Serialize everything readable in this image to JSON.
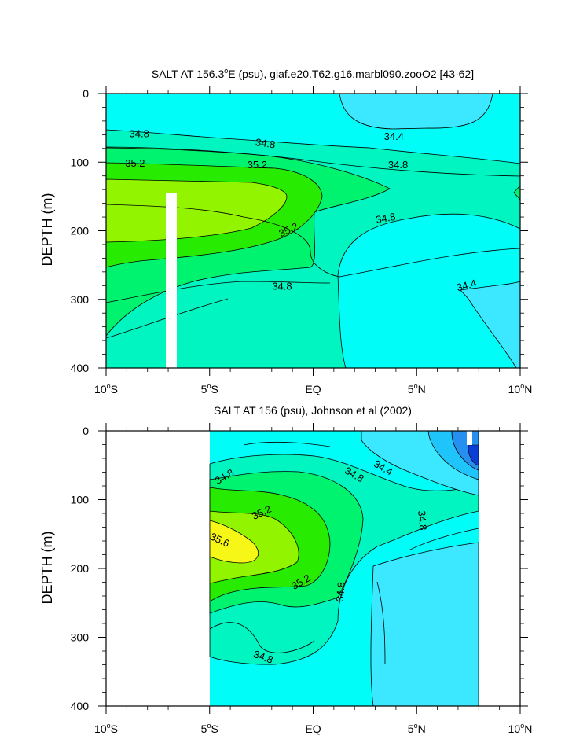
{
  "colors": {
    "white": "#ffffff",
    "lev_34_0": "#2590f0",
    "lev_34_2": "#1ec4fa",
    "lev_34_4": "#3be8ff",
    "lev_34_6": "#00fdf8",
    "lev_34_8": "#00f5c0",
    "lev_35_0": "#00f36f",
    "lev_35_2": "#27eb00",
    "lev_35_4": "#93f400",
    "lev_35_6": "#f6f716",
    "lev_dark": "#0c3dd4",
    "line": "#000000"
  },
  "chart_data": [
    {
      "type": "heatmap",
      "title_prefix": "SALT AT 156.3",
      "title_suffix": "E (psu), giaf.e20.T62.g16.marbl090.zooO2 [43-62]",
      "ylabel": "DEPTH (m)",
      "ylim": [
        0,
        400
      ],
      "xlim": [
        -10,
        10
      ],
      "yticks": [
        {
          "value": 0,
          "label": "0"
        },
        {
          "value": 100,
          "label": "100"
        },
        {
          "value": 200,
          "label": "200"
        },
        {
          "value": 300,
          "label": "300"
        },
        {
          "value": 400,
          "label": "400"
        }
      ],
      "xticks": [
        {
          "value": -10,
          "label": "10",
          "deg": true,
          "hem": "S"
        },
        {
          "value": -5,
          "label": "5",
          "deg": true,
          "hem": "S"
        },
        {
          "value": 0,
          "label": "EQ",
          "deg": false,
          "hem": ""
        },
        {
          "value": 5,
          "label": "5",
          "deg": true,
          "hem": "N"
        },
        {
          "value": 10,
          "label": "10",
          "deg": true,
          "hem": "N"
        }
      ],
      "contour_labels": [
        {
          "text": "34.8",
          "x": -8.4,
          "depth": 58,
          "angle": 0
        },
        {
          "text": "34.8",
          "x": -2.3,
          "depth": 72,
          "angle": 8
        },
        {
          "text": "34.4",
          "x": 3.9,
          "depth": 62,
          "angle": 0
        },
        {
          "text": "35.2",
          "x": -8.6,
          "depth": 101,
          "angle": 0
        },
        {
          "text": "35.2",
          "x": -2.7,
          "depth": 103,
          "angle": 0
        },
        {
          "text": "34.8",
          "x": 4.1,
          "depth": 103,
          "angle": 0
        },
        {
          "text": "34.8",
          "x": 3.5,
          "depth": 181,
          "angle": -10
        },
        {
          "text": "35.2",
          "x": -1.2,
          "depth": 198,
          "angle": -25
        },
        {
          "text": "34.8",
          "x": -1.5,
          "depth": 280,
          "angle": 0
        },
        {
          "text": "34.4",
          "x": 7.4,
          "depth": 279,
          "angle": -15
        }
      ]
    },
    {
      "type": "heatmap",
      "title": "SALT AT 156 (psu), Johnson et al (2002)",
      "ylabel": "DEPTH (m)",
      "ylim": [
        0,
        400
      ],
      "xlim": [
        -10,
        10
      ],
      "data_xrange": [
        -5,
        8
      ],
      "yticks": [
        {
          "value": 0,
          "label": "0"
        },
        {
          "value": 100,
          "label": "100"
        },
        {
          "value": 200,
          "label": "200"
        },
        {
          "value": 300,
          "label": "300"
        },
        {
          "value": 400,
          "label": "400"
        }
      ],
      "xticks": [
        {
          "value": -10,
          "label": "10",
          "deg": true,
          "hem": "S"
        },
        {
          "value": -5,
          "label": "5",
          "deg": true,
          "hem": "S"
        },
        {
          "value": 0,
          "label": "EQ",
          "deg": false,
          "hem": ""
        },
        {
          "value": 5,
          "label": "5",
          "deg": true,
          "hem": "N"
        },
        {
          "value": 10,
          "label": "10",
          "deg": true,
          "hem": "N"
        }
      ],
      "contour_labels": [
        {
          "text": "34.8",
          "x": -4.3,
          "depth": 66,
          "angle": -30
        },
        {
          "text": "34.4",
          "x": 3.4,
          "depth": 53,
          "angle": 30
        },
        {
          "text": "34.8",
          "x": 2.0,
          "depth": 63,
          "angle": 30
        },
        {
          "text": "35.2",
          "x": -2.5,
          "depth": 118,
          "angle": -25
        },
        {
          "text": "34.8",
          "x": 5.3,
          "depth": 130,
          "angle": 85
        },
        {
          "text": "35.6",
          "x": -4.5,
          "depth": 158,
          "angle": 25
        },
        {
          "text": "35.2",
          "x": -0.6,
          "depth": 219,
          "angle": -30
        },
        {
          "text": "34.8",
          "x": 1.3,
          "depth": 234,
          "angle": -85
        },
        {
          "text": "34.8",
          "x": -2.4,
          "depth": 328,
          "angle": 20
        }
      ]
    }
  ]
}
